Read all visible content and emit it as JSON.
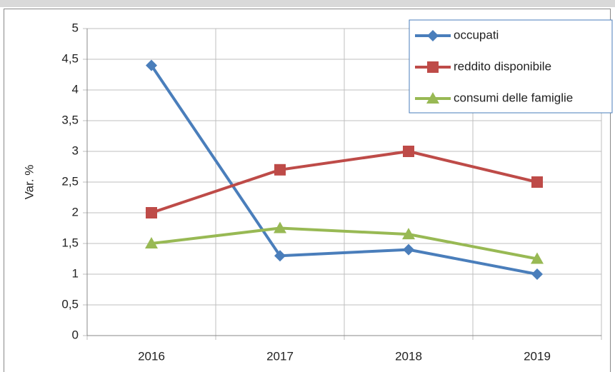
{
  "chart_data": {
    "type": "line",
    "y_label": "Var. %",
    "categories": [
      "2016",
      "2017",
      "2018",
      "2019"
    ],
    "series": [
      {
        "name": "occupati",
        "color": "#4a7ebb",
        "marker": "diamond",
        "values": [
          4.4,
          1.3,
          1.4,
          1.0
        ]
      },
      {
        "name": "reddito disponibile",
        "color": "#be4b48",
        "marker": "square",
        "values": [
          2.0,
          2.7,
          3.0,
          2.5
        ]
      },
      {
        "name": "consumi delle famiglie",
        "color": "#98b954",
        "marker": "triangle",
        "values": [
          1.5,
          1.75,
          1.65,
          1.25
        ]
      }
    ],
    "ylim": [
      0,
      5
    ],
    "yticks": [
      0,
      {
        "value": 0.5,
        "label": "0,5"
      },
      1,
      {
        "value": 1.5,
        "label": "1,5"
      },
      2,
      {
        "value": 2.5,
        "label": "2,5"
      },
      3,
      {
        "value": 3.5,
        "label": "3,5"
      },
      4,
      {
        "value": 4.5,
        "label": "4,5"
      },
      5
    ],
    "grid": true,
    "legend": "top-right"
  }
}
